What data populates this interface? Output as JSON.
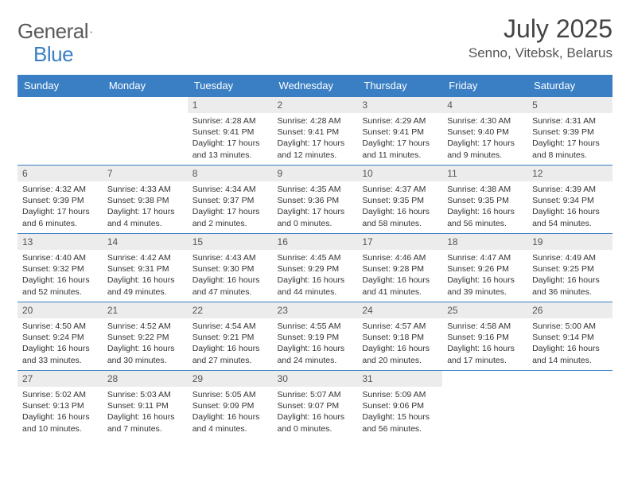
{
  "brand": {
    "part1": "General",
    "part2": "Blue"
  },
  "title": "July 2025",
  "location": "Senno, Vitebsk, Belarus",
  "colors": {
    "header_bg": "#3a7fc4",
    "header_text": "#ffffff",
    "daynum_bg": "#ececec",
    "row_border": "#3a7fc4",
    "body_text": "#333333",
    "title_text": "#444444"
  },
  "weekdays": [
    "Sunday",
    "Monday",
    "Tuesday",
    "Wednesday",
    "Thursday",
    "Friday",
    "Saturday"
  ],
  "weeks": [
    [
      null,
      null,
      {
        "n": "1",
        "sunrise": "4:28 AM",
        "sunset": "9:41 PM",
        "day_h": "17",
        "day_m": "13"
      },
      {
        "n": "2",
        "sunrise": "4:28 AM",
        "sunset": "9:41 PM",
        "day_h": "17",
        "day_m": "12"
      },
      {
        "n": "3",
        "sunrise": "4:29 AM",
        "sunset": "9:41 PM",
        "day_h": "17",
        "day_m": "11"
      },
      {
        "n": "4",
        "sunrise": "4:30 AM",
        "sunset": "9:40 PM",
        "day_h": "17",
        "day_m": "9"
      },
      {
        "n": "5",
        "sunrise": "4:31 AM",
        "sunset": "9:39 PM",
        "day_h": "17",
        "day_m": "8"
      }
    ],
    [
      {
        "n": "6",
        "sunrise": "4:32 AM",
        "sunset": "9:39 PM",
        "day_h": "17",
        "day_m": "6"
      },
      {
        "n": "7",
        "sunrise": "4:33 AM",
        "sunset": "9:38 PM",
        "day_h": "17",
        "day_m": "4"
      },
      {
        "n": "8",
        "sunrise": "4:34 AM",
        "sunset": "9:37 PM",
        "day_h": "17",
        "day_m": "2"
      },
      {
        "n": "9",
        "sunrise": "4:35 AM",
        "sunset": "9:36 PM",
        "day_h": "17",
        "day_m": "0"
      },
      {
        "n": "10",
        "sunrise": "4:37 AM",
        "sunset": "9:35 PM",
        "day_h": "16",
        "day_m": "58"
      },
      {
        "n": "11",
        "sunrise": "4:38 AM",
        "sunset": "9:35 PM",
        "day_h": "16",
        "day_m": "56"
      },
      {
        "n": "12",
        "sunrise": "4:39 AM",
        "sunset": "9:34 PM",
        "day_h": "16",
        "day_m": "54"
      }
    ],
    [
      {
        "n": "13",
        "sunrise": "4:40 AM",
        "sunset": "9:32 PM",
        "day_h": "16",
        "day_m": "52"
      },
      {
        "n": "14",
        "sunrise": "4:42 AM",
        "sunset": "9:31 PM",
        "day_h": "16",
        "day_m": "49"
      },
      {
        "n": "15",
        "sunrise": "4:43 AM",
        "sunset": "9:30 PM",
        "day_h": "16",
        "day_m": "47"
      },
      {
        "n": "16",
        "sunrise": "4:45 AM",
        "sunset": "9:29 PM",
        "day_h": "16",
        "day_m": "44"
      },
      {
        "n": "17",
        "sunrise": "4:46 AM",
        "sunset": "9:28 PM",
        "day_h": "16",
        "day_m": "41"
      },
      {
        "n": "18",
        "sunrise": "4:47 AM",
        "sunset": "9:26 PM",
        "day_h": "16",
        "day_m": "39"
      },
      {
        "n": "19",
        "sunrise": "4:49 AM",
        "sunset": "9:25 PM",
        "day_h": "16",
        "day_m": "36"
      }
    ],
    [
      {
        "n": "20",
        "sunrise": "4:50 AM",
        "sunset": "9:24 PM",
        "day_h": "16",
        "day_m": "33"
      },
      {
        "n": "21",
        "sunrise": "4:52 AM",
        "sunset": "9:22 PM",
        "day_h": "16",
        "day_m": "30"
      },
      {
        "n": "22",
        "sunrise": "4:54 AM",
        "sunset": "9:21 PM",
        "day_h": "16",
        "day_m": "27"
      },
      {
        "n": "23",
        "sunrise": "4:55 AM",
        "sunset": "9:19 PM",
        "day_h": "16",
        "day_m": "24"
      },
      {
        "n": "24",
        "sunrise": "4:57 AM",
        "sunset": "9:18 PM",
        "day_h": "16",
        "day_m": "20"
      },
      {
        "n": "25",
        "sunrise": "4:58 AM",
        "sunset": "9:16 PM",
        "day_h": "16",
        "day_m": "17"
      },
      {
        "n": "26",
        "sunrise": "5:00 AM",
        "sunset": "9:14 PM",
        "day_h": "16",
        "day_m": "14"
      }
    ],
    [
      {
        "n": "27",
        "sunrise": "5:02 AM",
        "sunset": "9:13 PM",
        "day_h": "16",
        "day_m": "10"
      },
      {
        "n": "28",
        "sunrise": "5:03 AM",
        "sunset": "9:11 PM",
        "day_h": "16",
        "day_m": "7"
      },
      {
        "n": "29",
        "sunrise": "5:05 AM",
        "sunset": "9:09 PM",
        "day_h": "16",
        "day_m": "4"
      },
      {
        "n": "30",
        "sunrise": "5:07 AM",
        "sunset": "9:07 PM",
        "day_h": "16",
        "day_m": "0"
      },
      {
        "n": "31",
        "sunrise": "5:09 AM",
        "sunset": "9:06 PM",
        "day_h": "15",
        "day_m": "56"
      },
      null,
      null
    ]
  ]
}
